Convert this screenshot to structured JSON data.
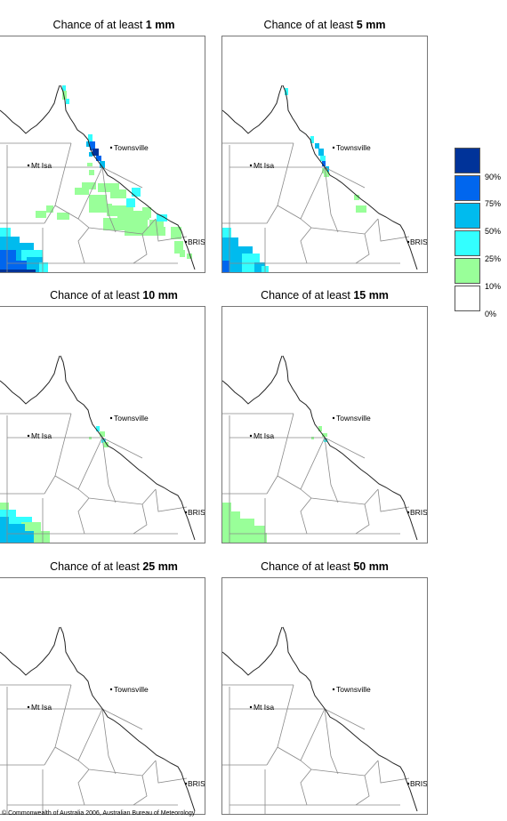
{
  "panels": [
    {
      "prefix": "Chance of at least",
      "amount": "1 mm",
      "variant": "p1"
    },
    {
      "prefix": "Chance of at least",
      "amount": "5 mm",
      "variant": "p5"
    },
    {
      "prefix": "Chance of at least",
      "amount": "10 mm",
      "variant": "p10"
    },
    {
      "prefix": "Chance of at least",
      "amount": "15 mm",
      "variant": "p15"
    },
    {
      "prefix": "Chance of at least",
      "amount": "25 mm",
      "variant": "p25"
    },
    {
      "prefix": "Chance of at least",
      "amount": "50 mm",
      "variant": "p50"
    }
  ],
  "places": {
    "townsville": "Townsville",
    "mt_isa": "Mt Isa",
    "brisbane": "BRIS"
  },
  "legend": {
    "boxes": [
      {
        "color": "#003399",
        "label": "90%"
      },
      {
        "color": "#0066ee",
        "label": "75%"
      },
      {
        "color": "#00bbee",
        "label": "50%"
      },
      {
        "color": "#33ffff",
        "label": "25%"
      },
      {
        "color": "#99ff99",
        "label": "10%"
      },
      {
        "color": "#ffffff",
        "label": "0%"
      }
    ]
  },
  "copyright": "© Commonwealth of Australia 2006, Australian Bureau of Meteorology"
}
